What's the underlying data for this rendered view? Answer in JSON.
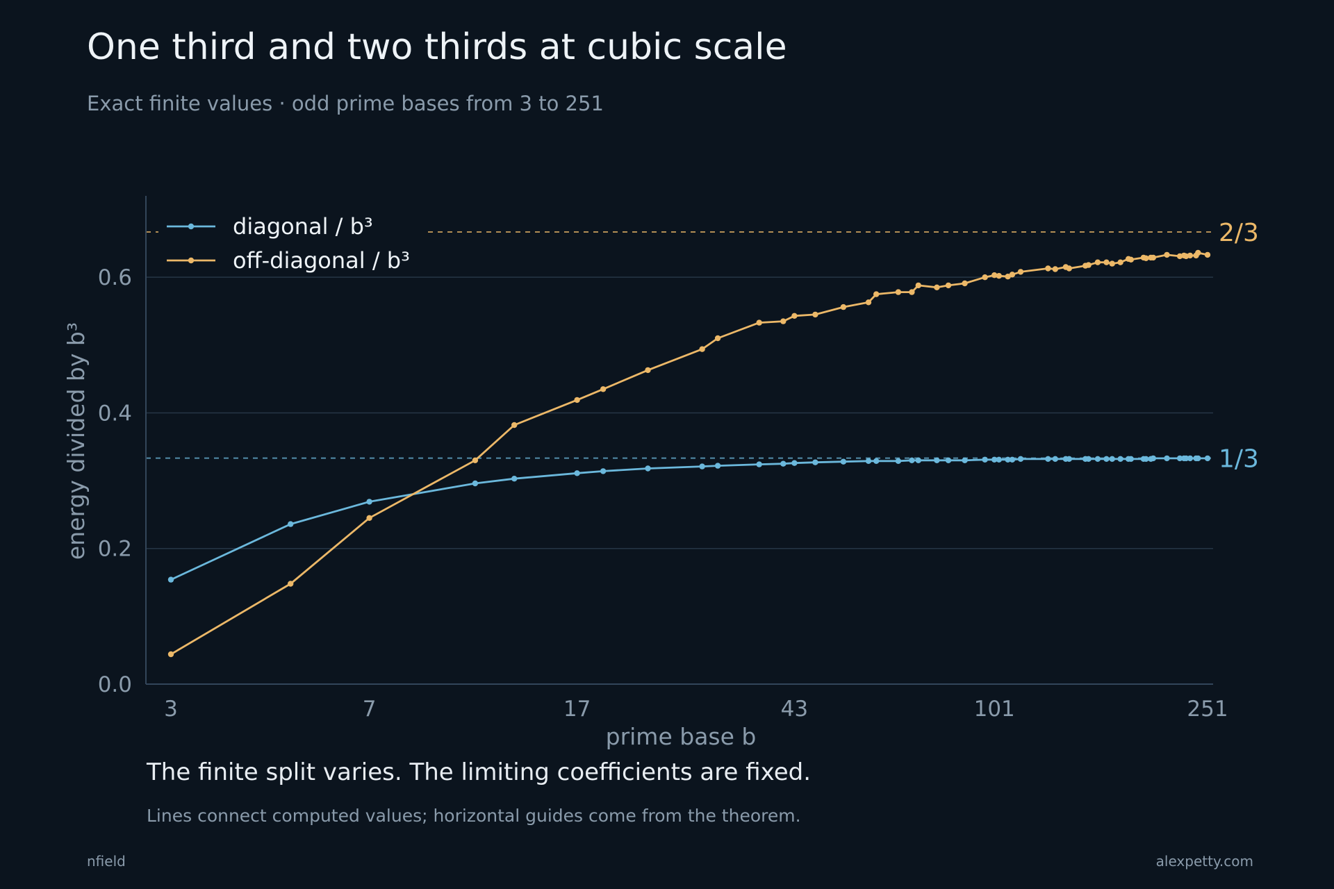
{
  "header": {
    "title": "One third and two thirds at cubic scale",
    "subtitle": "Exact finite values · odd prime bases from 3 to 251"
  },
  "caption": {
    "headline": "The finite split varies. The limiting coefficients are fixed.",
    "detail": "Lines connect computed values; horizontal guides come from the theorem."
  },
  "footer": {
    "left": "nfield",
    "right": "alexpetty.com"
  },
  "colors": {
    "background": "#0b141e",
    "diagonal": "#6bb8dc",
    "offdiagonal": "#ecb868",
    "grid": "#263646",
    "muted": "#8a9bab"
  },
  "chart_data": {
    "type": "line",
    "xlabel": "prime base b",
    "ylabel": "energy divided by b³",
    "x_scale": "log",
    "xlim": [
      3,
      251
    ],
    "ylim": [
      0,
      0.72
    ],
    "x_ticks": [
      3,
      7,
      17,
      43,
      101,
      251
    ],
    "y_ticks": [
      0.0,
      0.2,
      0.4,
      0.6
    ],
    "y_tick_labels": [
      "0.0",
      "0.2",
      "0.4",
      "0.6"
    ],
    "grid": "horizontal",
    "legend_position": "top-left",
    "guides": [
      {
        "label": "2/3",
        "value": 0.6667,
        "color": "#ecb868"
      },
      {
        "label": "1/3",
        "value": 0.3333,
        "color": "#6bb8dc"
      }
    ],
    "x": [
      3,
      5,
      7,
      11,
      13,
      17,
      19,
      23,
      29,
      31,
      37,
      41,
      43,
      47,
      53,
      59,
      61,
      67,
      71,
      73,
      79,
      83,
      89,
      97,
      101,
      103,
      107,
      109,
      113,
      127,
      131,
      137,
      139,
      149,
      151,
      157,
      163,
      167,
      173,
      179,
      181,
      191,
      193,
      197,
      199,
      211,
      223,
      227,
      229,
      233,
      239,
      241,
      251
    ],
    "series": [
      {
        "name": "diagonal / b³",
        "color": "#6bb8dc",
        "values": [
          0.154,
          0.236,
          0.269,
          0.296,
          0.303,
          0.311,
          0.314,
          0.318,
          0.321,
          0.322,
          0.324,
          0.325,
          0.326,
          0.327,
          0.328,
          0.329,
          0.329,
          0.329,
          0.33,
          0.33,
          0.33,
          0.33,
          0.33,
          0.331,
          0.331,
          0.331,
          0.331,
          0.331,
          0.332,
          0.332,
          0.332,
          0.332,
          0.332,
          0.332,
          0.332,
          0.332,
          0.332,
          0.332,
          0.332,
          0.332,
          0.332,
          0.332,
          0.332,
          0.332,
          0.333,
          0.333,
          0.333,
          0.333,
          0.333,
          0.333,
          0.333,
          0.333,
          0.333
        ]
      },
      {
        "name": "off-diagonal / b³",
        "color": "#ecb868",
        "values": [
          0.044,
          0.148,
          0.245,
          0.33,
          0.382,
          0.419,
          0.435,
          0.463,
          0.494,
          0.51,
          0.533,
          0.535,
          0.543,
          0.545,
          0.556,
          0.563,
          0.575,
          0.578,
          0.578,
          0.588,
          0.585,
          0.588,
          0.591,
          0.6,
          0.603,
          0.602,
          0.601,
          0.604,
          0.608,
          0.613,
          0.612,
          0.615,
          0.613,
          0.617,
          0.618,
          0.622,
          0.622,
          0.62,
          0.622,
          0.627,
          0.626,
          0.629,
          0.628,
          0.629,
          0.629,
          0.633,
          0.631,
          0.632,
          0.631,
          0.632,
          0.632,
          0.636,
          0.633
        ]
      }
    ]
  }
}
